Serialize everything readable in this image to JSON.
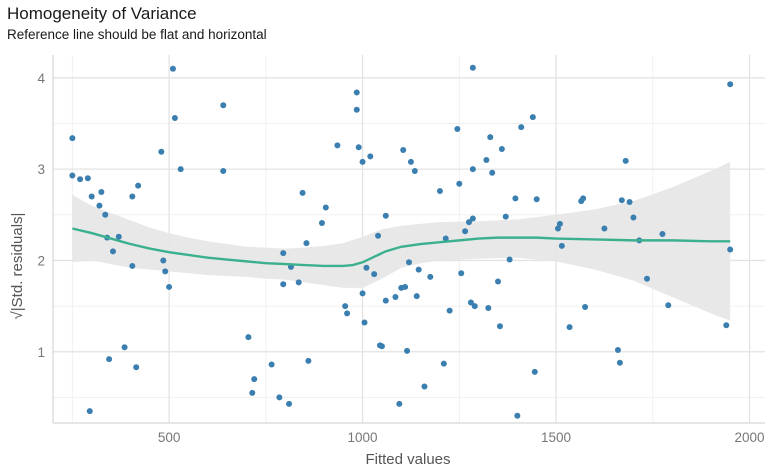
{
  "chart_data": {
    "type": "scatter",
    "title": "Homogeneity of Variance",
    "subtitle": "Reference line should be flat and horizontal",
    "xlabel": "Fitted values",
    "ylabel": "√|Std. residuals|",
    "xlim": [
      200,
      2040
    ],
    "ylim": [
      0.22,
      4.25
    ],
    "x_ticks": [
      500,
      1000,
      1500,
      2000
    ],
    "y_ticks": [
      1,
      2,
      3,
      4
    ],
    "x_minor": [
      250,
      750,
      1250,
      1750
    ],
    "y_minor": [
      0.5,
      1.5,
      2.5,
      3.5
    ],
    "grid": true,
    "legend": "none",
    "colors": {
      "points": "#3a7fb0",
      "smooth_line": "#3bb08f",
      "confidence_band": "#e6e6e6",
      "grid_major": "#e3e3e3",
      "grid_minor": "#f0f0f0"
    },
    "points": [
      [
        250,
        3.34
      ],
      [
        250,
        2.93
      ],
      [
        270,
        2.89
      ],
      [
        290,
        2.9
      ],
      [
        295,
        0.35
      ],
      [
        300,
        2.7
      ],
      [
        320,
        2.6
      ],
      [
        325,
        2.75
      ],
      [
        335,
        2.5
      ],
      [
        340,
        2.25
      ],
      [
        345,
        0.92
      ],
      [
        355,
        2.1
      ],
      [
        370,
        2.26
      ],
      [
        385,
        1.05
      ],
      [
        405,
        1.94
      ],
      [
        405,
        2.7
      ],
      [
        415,
        0.83
      ],
      [
        420,
        2.82
      ],
      [
        480,
        3.19
      ],
      [
        485,
        2.0
      ],
      [
        490,
        1.88
      ],
      [
        500,
        1.71
      ],
      [
        510,
        4.1
      ],
      [
        515,
        3.56
      ],
      [
        530,
        3.0
      ],
      [
        640,
        3.7
      ],
      [
        640,
        2.98
      ],
      [
        705,
        1.16
      ],
      [
        715,
        0.55
      ],
      [
        720,
        0.7
      ],
      [
        765,
        0.86
      ],
      [
        785,
        0.5
      ],
      [
        795,
        2.08
      ],
      [
        795,
        1.74
      ],
      [
        810,
        0.43
      ],
      [
        815,
        1.93
      ],
      [
        835,
        1.76
      ],
      [
        845,
        2.74
      ],
      [
        855,
        2.19
      ],
      [
        860,
        0.9
      ],
      [
        895,
        2.41
      ],
      [
        905,
        2.58
      ],
      [
        935,
        3.26
      ],
      [
        955,
        1.5
      ],
      [
        960,
        1.42
      ],
      [
        985,
        3.84
      ],
      [
        985,
        3.65
      ],
      [
        990,
        3.24
      ],
      [
        1000,
        3.08
      ],
      [
        1000,
        1.64
      ],
      [
        1005,
        1.32
      ],
      [
        1010,
        1.92
      ],
      [
        1020,
        3.14
      ],
      [
        1030,
        1.85
      ],
      [
        1040,
        2.27
      ],
      [
        1045,
        1.07
      ],
      [
        1050,
        1.06
      ],
      [
        1060,
        2.49
      ],
      [
        1060,
        1.56
      ],
      [
        1085,
        1.6
      ],
      [
        1095,
        0.43
      ],
      [
        1100,
        1.7
      ],
      [
        1105,
        3.21
      ],
      [
        1110,
        1.71
      ],
      [
        1115,
        1.01
      ],
      [
        1120,
        1.98
      ],
      [
        1125,
        3.08
      ],
      [
        1135,
        2.98
      ],
      [
        1140,
        1.61
      ],
      [
        1145,
        1.9
      ],
      [
        1160,
        0.62
      ],
      [
        1175,
        1.82
      ],
      [
        1200,
        2.76
      ],
      [
        1210,
        0.87
      ],
      [
        1215,
        2.24
      ],
      [
        1225,
        1.45
      ],
      [
        1245,
        3.44
      ],
      [
        1250,
        2.84
      ],
      [
        1255,
        1.86
      ],
      [
        1265,
        2.32
      ],
      [
        1275,
        2.42
      ],
      [
        1280,
        1.54
      ],
      [
        1285,
        4.11
      ],
      [
        1285,
        3.0
      ],
      [
        1285,
        2.46
      ],
      [
        1290,
        1.5
      ],
      [
        1320,
        3.1
      ],
      [
        1325,
        1.48
      ],
      [
        1330,
        3.35
      ],
      [
        1335,
        2.96
      ],
      [
        1350,
        1.77
      ],
      [
        1355,
        1.28
      ],
      [
        1360,
        3.22
      ],
      [
        1370,
        2.48
      ],
      [
        1380,
        2.01
      ],
      [
        1395,
        2.68
      ],
      [
        1400,
        0.3
      ],
      [
        1410,
        3.46
      ],
      [
        1440,
        3.57
      ],
      [
        1445,
        0.78
      ],
      [
        1450,
        2.67
      ],
      [
        1505,
        2.35
      ],
      [
        1510,
        2.4
      ],
      [
        1515,
        2.16
      ],
      [
        1535,
        1.27
      ],
      [
        1565,
        2.65
      ],
      [
        1570,
        2.68
      ],
      [
        1575,
        1.49
      ],
      [
        1625,
        2.35
      ],
      [
        1660,
        1.02
      ],
      [
        1665,
        0.88
      ],
      [
        1670,
        2.66
      ],
      [
        1680,
        3.09
      ],
      [
        1690,
        2.64
      ],
      [
        1700,
        2.47
      ],
      [
        1715,
        2.22
      ],
      [
        1735,
        1.8
      ],
      [
        1775,
        2.29
      ],
      [
        1790,
        1.51
      ],
      [
        1940,
        1.29
      ],
      [
        1950,
        3.93
      ],
      [
        1950,
        2.12
      ]
    ],
    "smooth_line": [
      [
        250,
        2.35
      ],
      [
        300,
        2.3
      ],
      [
        350,
        2.24
      ],
      [
        400,
        2.18
      ],
      [
        450,
        2.13
      ],
      [
        500,
        2.09
      ],
      [
        550,
        2.06
      ],
      [
        600,
        2.03
      ],
      [
        650,
        2.01
      ],
      [
        700,
        1.99
      ],
      [
        750,
        1.97
      ],
      [
        800,
        1.96
      ],
      [
        850,
        1.95
      ],
      [
        900,
        1.94
      ],
      [
        950,
        1.94
      ],
      [
        975,
        1.95
      ],
      [
        1000,
        1.98
      ],
      [
        1030,
        2.04
      ],
      [
        1060,
        2.1
      ],
      [
        1100,
        2.15
      ],
      [
        1150,
        2.18
      ],
      [
        1200,
        2.2
      ],
      [
        1250,
        2.22
      ],
      [
        1300,
        2.24
      ],
      [
        1350,
        2.25
      ],
      [
        1400,
        2.25
      ],
      [
        1450,
        2.25
      ],
      [
        1500,
        2.24
      ],
      [
        1600,
        2.23
      ],
      [
        1700,
        2.22
      ],
      [
        1800,
        2.22
      ],
      [
        1900,
        2.21
      ],
      [
        1950,
        2.21
      ]
    ],
    "band_upper": [
      [
        250,
        2.72
      ],
      [
        300,
        2.6
      ],
      [
        350,
        2.52
      ],
      [
        400,
        2.44
      ],
      [
        450,
        2.36
      ],
      [
        500,
        2.3
      ],
      [
        550,
        2.25
      ],
      [
        600,
        2.21
      ],
      [
        650,
        2.18
      ],
      [
        700,
        2.15
      ],
      [
        750,
        2.14
      ],
      [
        800,
        2.13
      ],
      [
        850,
        2.14
      ],
      [
        900,
        2.16
      ],
      [
        950,
        2.19
      ],
      [
        1000,
        2.26
      ],
      [
        1050,
        2.34
      ],
      [
        1100,
        2.38
      ],
      [
        1150,
        2.4
      ],
      [
        1200,
        2.42
      ],
      [
        1300,
        2.43
      ],
      [
        1400,
        2.45
      ],
      [
        1500,
        2.5
      ],
      [
        1600,
        2.56
      ],
      [
        1700,
        2.65
      ],
      [
        1800,
        2.8
      ],
      [
        1900,
        2.98
      ],
      [
        1950,
        3.08
      ]
    ],
    "band_lower": [
      [
        250,
        1.98
      ],
      [
        300,
        2.0
      ],
      [
        350,
        1.96
      ],
      [
        400,
        1.92
      ],
      [
        450,
        1.9
      ],
      [
        500,
        1.88
      ],
      [
        550,
        1.86
      ],
      [
        600,
        1.84
      ],
      [
        650,
        1.83
      ],
      [
        700,
        1.82
      ],
      [
        750,
        1.8
      ],
      [
        800,
        1.79
      ],
      [
        850,
        1.76
      ],
      [
        900,
        1.73
      ],
      [
        950,
        1.7
      ],
      [
        1000,
        1.7
      ],
      [
        1050,
        1.8
      ],
      [
        1100,
        1.92
      ],
      [
        1150,
        1.97
      ],
      [
        1200,
        2.0
      ],
      [
        1300,
        2.02
      ],
      [
        1400,
        2.03
      ],
      [
        1500,
        1.99
      ],
      [
        1600,
        1.9
      ],
      [
        1700,
        1.78
      ],
      [
        1800,
        1.6
      ],
      [
        1900,
        1.42
      ],
      [
        1950,
        1.34
      ]
    ]
  }
}
